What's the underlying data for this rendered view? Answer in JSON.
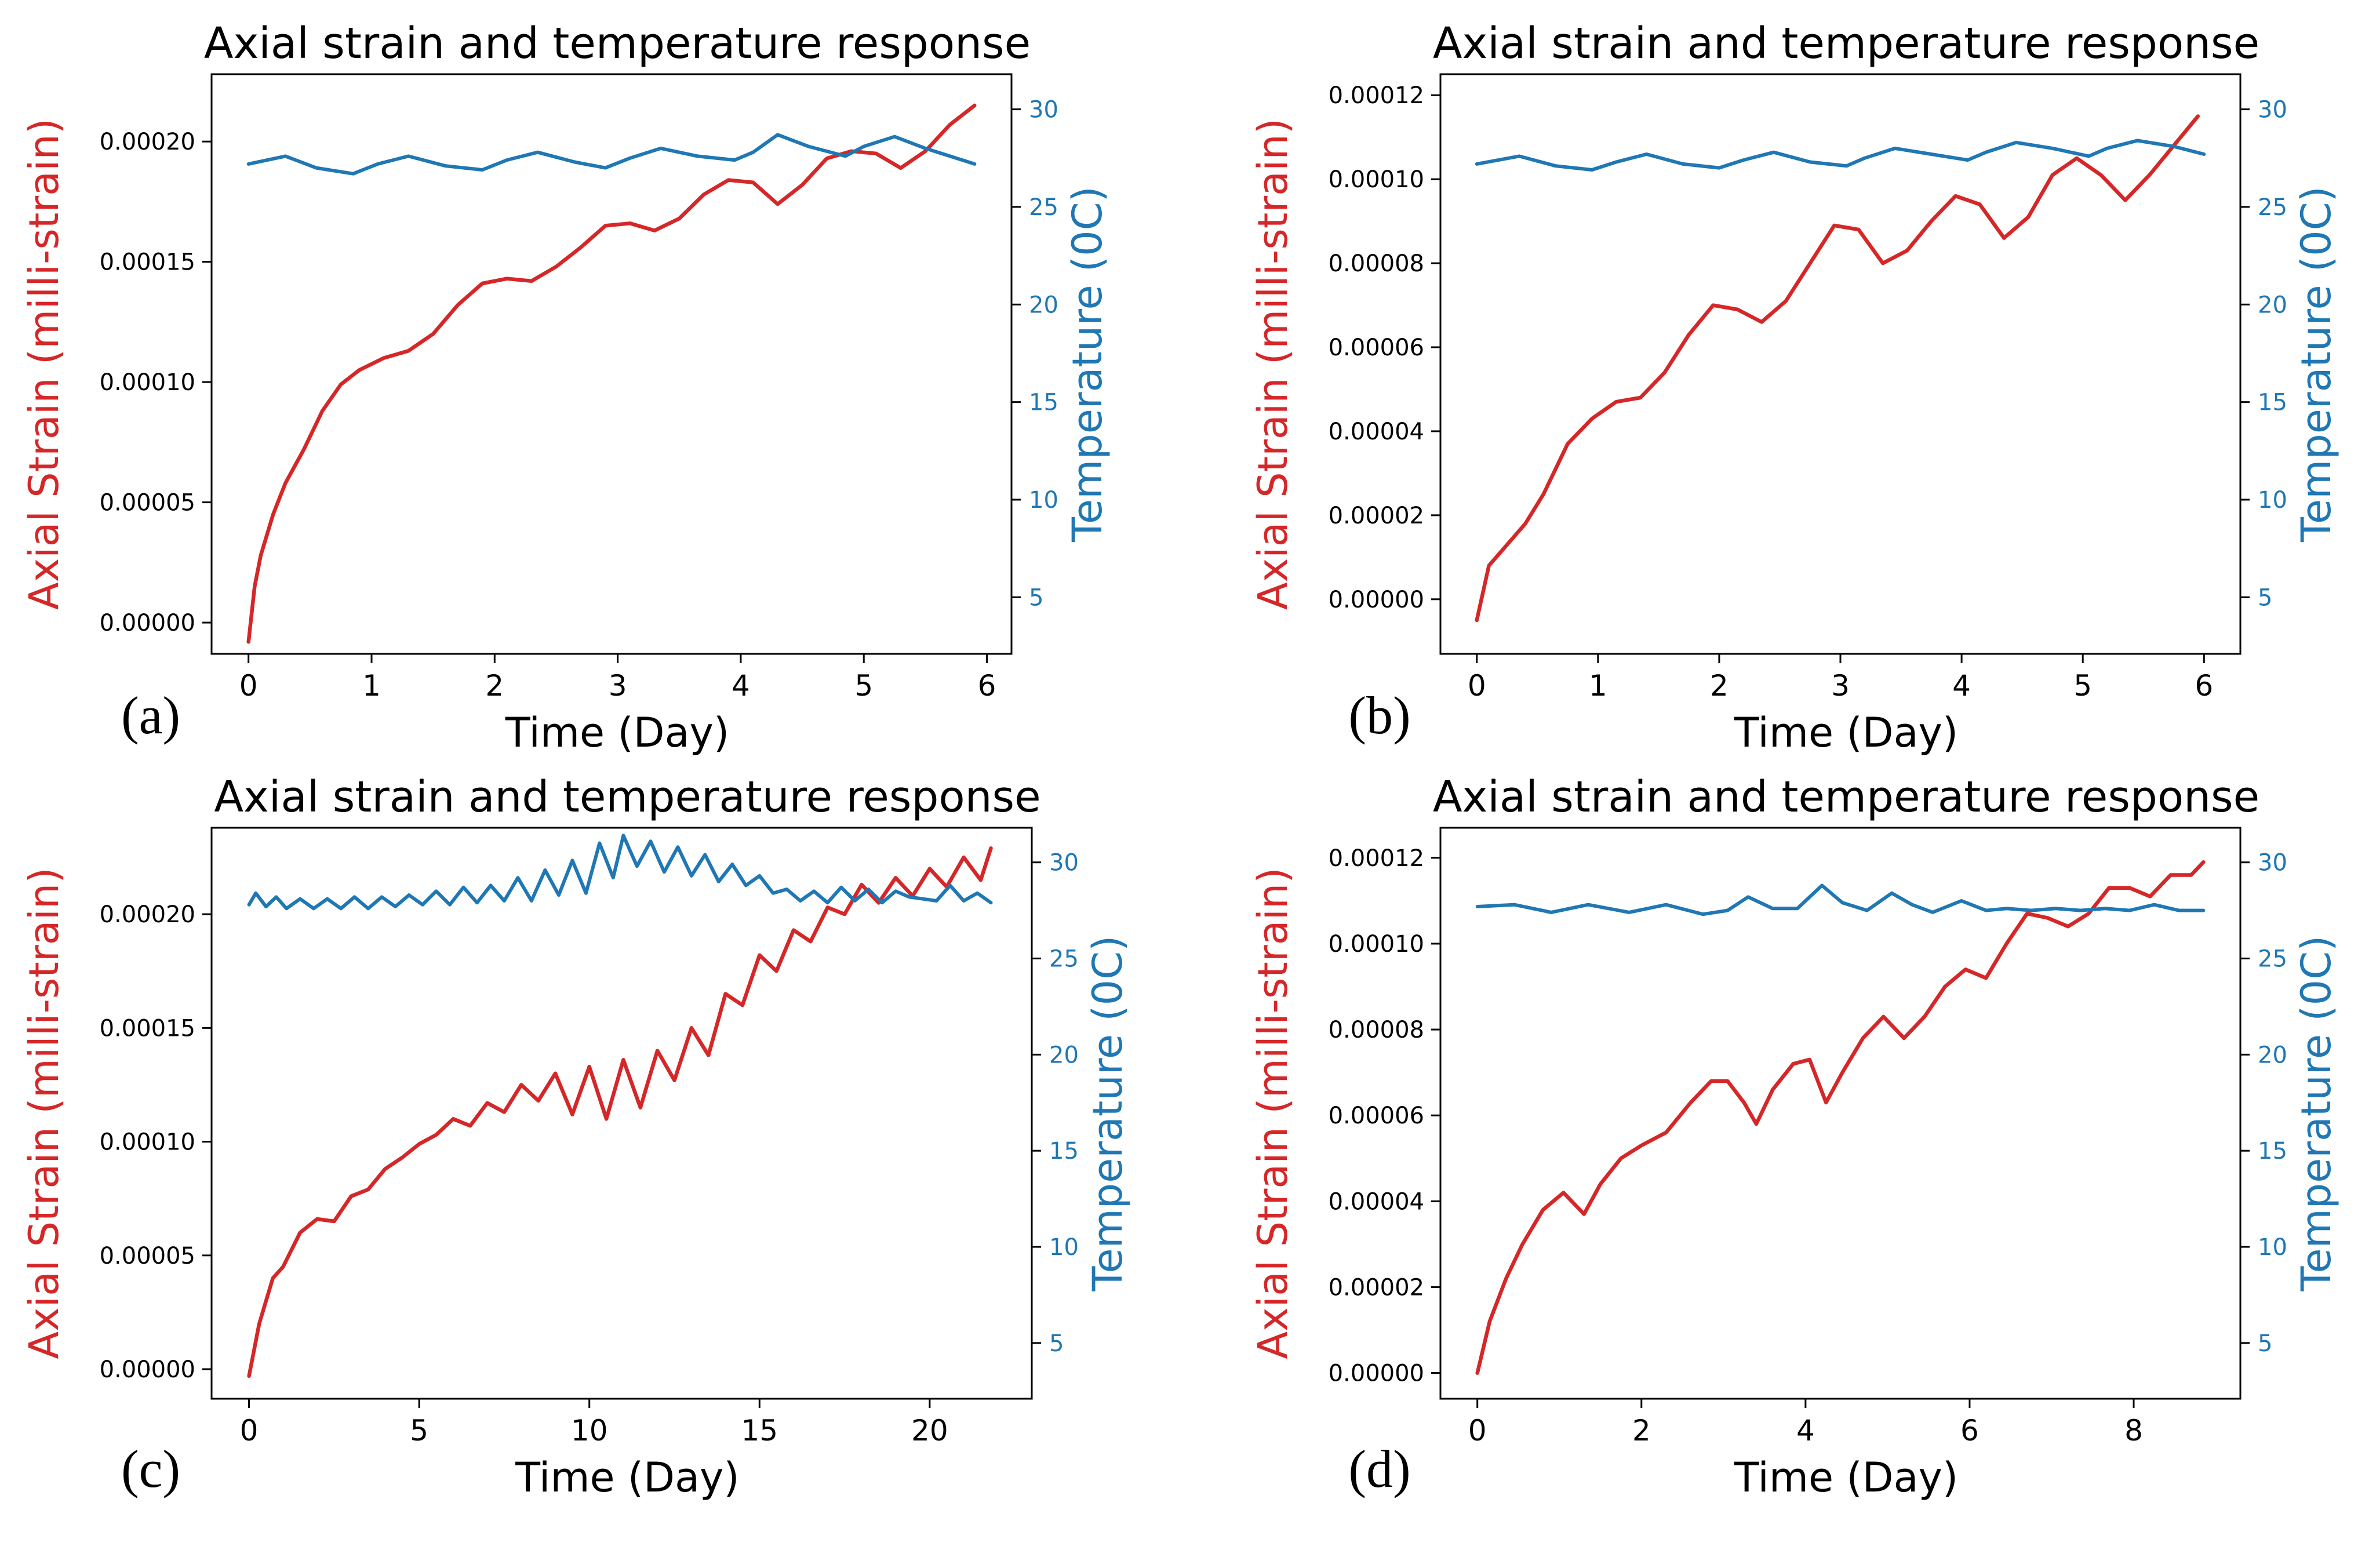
{
  "colors": {
    "strain": "#d62728",
    "temperature": "#1f77b4",
    "axis": "#000000"
  },
  "chart_data": [
    {
      "panel": "(a)",
      "type": "line",
      "title": "Axial strain and temperature response",
      "xlabel": "Time (Day)",
      "ylabel": "Axial Strain (milli-strain)",
      "y2label": "Temperature (0C)",
      "xlim": [
        -0.3,
        6.2
      ],
      "ylim": [
        -1.3e-05,
        0.000228
      ],
      "y2lim": [
        2.1,
        31.8
      ],
      "xticks": [
        0,
        1,
        2,
        3,
        4,
        5,
        6
      ],
      "xtick_labels": [
        "0",
        "1",
        "2",
        "3",
        "4",
        "5",
        "6"
      ],
      "yticks": [
        0,
        5e-05,
        0.0001,
        0.00015,
        0.0002
      ],
      "ytick_labels": [
        "0.00000",
        "0.00005",
        "0.00010",
        "0.00015",
        "0.00020"
      ],
      "y2ticks": [
        5,
        10,
        15,
        20,
        25,
        30
      ],
      "y2tick_labels": [
        "5",
        "10",
        "15",
        "20",
        "25",
        "30"
      ],
      "series": [
        {
          "name": "Axial Strain",
          "axis": "left",
          "x": [
            0,
            0.05,
            0.1,
            0.2,
            0.3,
            0.45,
            0.6,
            0.75,
            0.9,
            1.1,
            1.3,
            1.5,
            1.7,
            1.9,
            2.1,
            2.3,
            2.5,
            2.7,
            2.9,
            3.1,
            3.3,
            3.5,
            3.7,
            3.9,
            4.1,
            4.3,
            4.5,
            4.7,
            4.9,
            5.1,
            5.3,
            5.5,
            5.7,
            5.9
          ],
          "values": [
            -8e-06,
            1.5e-05,
            2.8e-05,
            4.5e-05,
            5.8e-05,
            7.2e-05,
            8.8e-05,
            9.9e-05,
            0.000105,
            0.00011,
            0.000113,
            0.00012,
            0.000132,
            0.000141,
            0.000143,
            0.000142,
            0.000148,
            0.000156,
            0.000165,
            0.000166,
            0.000163,
            0.000168,
            0.000178,
            0.000184,
            0.000183,
            0.000174,
            0.000182,
            0.000193,
            0.000196,
            0.000195,
            0.000189,
            0.000196,
            0.000207,
            0.000215
          ]
        },
        {
          "name": "Temperature",
          "axis": "right",
          "x": [
            0,
            0.3,
            0.55,
            0.85,
            1.05,
            1.3,
            1.6,
            1.9,
            2.1,
            2.35,
            2.65,
            2.9,
            3.1,
            3.35,
            3.65,
            3.95,
            4.1,
            4.3,
            4.55,
            4.85,
            5.0,
            5.25,
            5.5,
            5.9
          ],
          "values": [
            27.2,
            27.6,
            27.0,
            26.7,
            27.2,
            27.6,
            27.1,
            26.9,
            27.4,
            27.8,
            27.3,
            27.0,
            27.5,
            28.0,
            27.6,
            27.4,
            27.8,
            28.7,
            28.1,
            27.6,
            28.1,
            28.6,
            28.0,
            27.2
          ]
        }
      ]
    },
    {
      "panel": "(b)",
      "type": "line",
      "title": "Axial strain and temperature response",
      "xlabel": "Time (Day)",
      "ylabel": "Axial Strain (milli-strain)",
      "y2label": "Temperature (0C)",
      "xlim": [
        -0.3,
        6.3
      ],
      "ylim": [
        -1.3e-05,
        0.000125
      ],
      "y2lim": [
        2.1,
        31.8
      ],
      "xticks": [
        0,
        1,
        2,
        3,
        4,
        5,
        6
      ],
      "xtick_labels": [
        "0",
        "1",
        "2",
        "3",
        "4",
        "5",
        "6"
      ],
      "yticks": [
        0,
        2e-05,
        4e-05,
        6e-05,
        8e-05,
        0.0001,
        0.00012
      ],
      "ytick_labels": [
        "0.00000",
        "0.00002",
        "0.00004",
        "0.00006",
        "0.00008",
        "0.00010",
        "0.00012"
      ],
      "y2ticks": [
        5,
        10,
        15,
        20,
        25,
        30
      ],
      "y2tick_labels": [
        "5",
        "10",
        "15",
        "20",
        "25",
        "30"
      ],
      "series": [
        {
          "name": "Axial Strain",
          "axis": "left",
          "x": [
            0,
            0.1,
            0.25,
            0.4,
            0.55,
            0.75,
            0.95,
            1.15,
            1.35,
            1.55,
            1.75,
            1.95,
            2.15,
            2.35,
            2.55,
            2.75,
            2.95,
            3.15,
            3.35,
            3.55,
            3.75,
            3.95,
            4.15,
            4.35,
            4.55,
            4.75,
            4.95,
            5.15,
            5.35,
            5.55,
            5.75,
            5.95
          ],
          "values": [
            -5e-06,
            8e-06,
            1.3e-05,
            1.8e-05,
            2.5e-05,
            3.7e-05,
            4.3e-05,
            4.7e-05,
            4.8e-05,
            5.4e-05,
            6.3e-05,
            7e-05,
            6.9e-05,
            6.6e-05,
            7.1e-05,
            8e-05,
            8.9e-05,
            8.8e-05,
            8e-05,
            8.3e-05,
            9e-05,
            9.6e-05,
            9.4e-05,
            8.6e-05,
            9.1e-05,
            0.000101,
            0.000105,
            0.000101,
            9.5e-05,
            0.000101,
            0.000108,
            0.000115
          ]
        },
        {
          "name": "Temperature",
          "axis": "right",
          "x": [
            0,
            0.35,
            0.65,
            0.95,
            1.15,
            1.4,
            1.7,
            2.0,
            2.2,
            2.45,
            2.75,
            3.05,
            3.2,
            3.45,
            3.75,
            4.05,
            4.2,
            4.45,
            4.75,
            5.05,
            5.2,
            5.45,
            5.75,
            6.0
          ],
          "values": [
            27.2,
            27.6,
            27.1,
            26.9,
            27.3,
            27.7,
            27.2,
            27.0,
            27.4,
            27.8,
            27.3,
            27.1,
            27.5,
            28.0,
            27.7,
            27.4,
            27.8,
            28.3,
            28.0,
            27.6,
            28.0,
            28.4,
            28.1,
            27.7
          ]
        }
      ]
    },
    {
      "panel": "(c)",
      "type": "line",
      "title": "Axial strain and temperature response",
      "xlabel": "Time (Day)",
      "ylabel": "Axial Strain (milli-strain)",
      "y2label": "Temperature (0C)",
      "xlim": [
        -1.1,
        23.0
      ],
      "ylim": [
        -1.3e-05,
        0.000238
      ],
      "y2lim": [
        2.1,
        31.8
      ],
      "xticks": [
        0,
        5,
        10,
        15,
        20
      ],
      "xtick_labels": [
        "0",
        "5",
        "10",
        "15",
        "20"
      ],
      "yticks": [
        0,
        5e-05,
        0.0001,
        0.00015,
        0.0002
      ],
      "ytick_labels": [
        "0.00000",
        "0.00005",
        "0.00010",
        "0.00015",
        "0.00020"
      ],
      "y2ticks": [
        5,
        10,
        15,
        20,
        25,
        30
      ],
      "y2tick_labels": [
        "5",
        "10",
        "15",
        "20",
        "25",
        "30"
      ],
      "series": [
        {
          "name": "Axial Strain",
          "axis": "left",
          "x": [
            0,
            0.3,
            0.7,
            1.0,
            1.5,
            2.0,
            2.5,
            3.0,
            3.5,
            4.0,
            4.5,
            5.0,
            5.5,
            6.0,
            6.5,
            7.0,
            7.5,
            8.0,
            8.5,
            9.0,
            9.5,
            10.0,
            10.5,
            11.0,
            11.5,
            12.0,
            12.5,
            13.0,
            13.5,
            14.0,
            14.5,
            15.0,
            15.5,
            16.0,
            16.5,
            17.0,
            17.5,
            18.0,
            18.5,
            19.0,
            19.5,
            20.0,
            20.5,
            21.0,
            21.5,
            21.8
          ],
          "values": [
            -3e-06,
            2e-05,
            4e-05,
            4.5e-05,
            6e-05,
            6.6e-05,
            6.5e-05,
            7.6e-05,
            7.9e-05,
            8.8e-05,
            9.3e-05,
            9.9e-05,
            0.000103,
            0.00011,
            0.000107,
            0.000117,
            0.000113,
            0.000125,
            0.000118,
            0.00013,
            0.000112,
            0.000133,
            0.00011,
            0.000136,
            0.000115,
            0.00014,
            0.000127,
            0.00015,
            0.000138,
            0.000165,
            0.00016,
            0.000182,
            0.000175,
            0.000193,
            0.000188,
            0.000203,
            0.0002,
            0.000213,
            0.000205,
            0.000216,
            0.000208,
            0.00022,
            0.000212,
            0.000225,
            0.000215,
            0.000229
          ]
        },
        {
          "name": "Temperature",
          "axis": "right",
          "x": [
            0,
            0.2,
            0.5,
            0.8,
            1.1,
            1.5,
            1.9,
            2.3,
            2.7,
            3.1,
            3.5,
            3.9,
            4.3,
            4.7,
            5.1,
            5.5,
            5.9,
            6.3,
            6.7,
            7.1,
            7.5,
            7.9,
            8.3,
            8.7,
            9.1,
            9.5,
            9.9,
            10.3,
            10.7,
            11.0,
            11.4,
            11.8,
            12.2,
            12.6,
            13.0,
            13.4,
            13.8,
            14.2,
            14.6,
            15.0,
            15.4,
            15.8,
            16.2,
            16.6,
            17.0,
            17.4,
            17.8,
            18.2,
            18.6,
            19.0,
            19.4,
            19.8,
            20.2,
            20.6,
            21.0,
            21.4,
            21.8
          ],
          "values": [
            27.8,
            28.4,
            27.7,
            28.2,
            27.6,
            28.1,
            27.6,
            28.1,
            27.6,
            28.2,
            27.6,
            28.2,
            27.7,
            28.3,
            27.8,
            28.5,
            27.8,
            28.7,
            27.9,
            28.8,
            28.0,
            29.2,
            28.0,
            29.6,
            28.3,
            30.1,
            28.4,
            31.0,
            29.2,
            31.4,
            29.8,
            31.1,
            29.5,
            30.8,
            29.3,
            30.4,
            29.0,
            29.9,
            28.8,
            29.3,
            28.4,
            28.6,
            28.0,
            28.5,
            27.9,
            28.7,
            28.0,
            28.6,
            27.9,
            28.5,
            28.2,
            28.1,
            28.0,
            28.8,
            28.0,
            28.4,
            27.9
          ]
        }
      ]
    },
    {
      "panel": "(d)",
      "type": "line",
      "title": "Axial strain and temperature response",
      "xlabel": "Time (Day)",
      "ylabel": "Axial Strain (milli-strain)",
      "y2label": "Temperature (0C)",
      "xlim": [
        -0.45,
        9.3
      ],
      "ylim": [
        -6e-06,
        0.000127
      ],
      "y2lim": [
        2.1,
        31.8
      ],
      "xticks": [
        0,
        2,
        4,
        6,
        8
      ],
      "xtick_labels": [
        "0",
        "2",
        "4",
        "6",
        "8"
      ],
      "yticks": [
        0,
        2e-05,
        4e-05,
        6e-05,
        8e-05,
        0.0001,
        0.00012
      ],
      "ytick_labels": [
        "0.00000",
        "0.00002",
        "0.00004",
        "0.00006",
        "0.00008",
        "0.00010",
        "0.00012"
      ],
      "y2ticks": [
        5,
        10,
        15,
        20,
        25,
        30
      ],
      "y2tick_labels": [
        "5",
        "10",
        "15",
        "20",
        "25",
        "30"
      ],
      "series": [
        {
          "name": "Axial Strain",
          "axis": "left",
          "x": [
            0,
            0.15,
            0.35,
            0.55,
            0.8,
            1.05,
            1.3,
            1.5,
            1.75,
            2.0,
            2.3,
            2.6,
            2.85,
            3.05,
            3.25,
            3.4,
            3.6,
            3.85,
            4.05,
            4.25,
            4.45,
            4.7,
            4.95,
            5.2,
            5.45,
            5.7,
            5.95,
            6.2,
            6.45,
            6.7,
            6.95,
            7.2,
            7.45,
            7.7,
            7.95,
            8.2,
            8.45,
            8.7,
            8.85
          ],
          "values": [
            0,
            1.2e-05,
            2.2e-05,
            3e-05,
            3.8e-05,
            4.2e-05,
            3.7e-05,
            4.4e-05,
            5e-05,
            5.3e-05,
            5.6e-05,
            6.3e-05,
            6.8e-05,
            6.8e-05,
            6.3e-05,
            5.8e-05,
            6.6e-05,
            7.2e-05,
            7.3e-05,
            6.3e-05,
            7e-05,
            7.8e-05,
            8.3e-05,
            7.8e-05,
            8.3e-05,
            9e-05,
            9.4e-05,
            9.2e-05,
            0.0001,
            0.000107,
            0.000106,
            0.000104,
            0.000107,
            0.000113,
            0.000113,
            0.000111,
            0.000116,
            0.000116,
            0.000119
          ]
        },
        {
          "name": "Temperature",
          "axis": "right",
          "x": [
            0,
            0.45,
            0.9,
            1.35,
            1.85,
            2.3,
            2.75,
            3.05,
            3.3,
            3.6,
            3.9,
            4.2,
            4.45,
            4.75,
            5.05,
            5.3,
            5.55,
            5.9,
            6.2,
            6.45,
            6.75,
            7.05,
            7.35,
            7.65,
            7.95,
            8.25,
            8.55,
            8.85
          ],
          "values": [
            27.7,
            27.8,
            27.4,
            27.8,
            27.4,
            27.8,
            27.3,
            27.5,
            28.2,
            27.6,
            27.6,
            28.8,
            27.9,
            27.5,
            28.4,
            27.8,
            27.4,
            28.0,
            27.5,
            27.6,
            27.5,
            27.6,
            27.5,
            27.6,
            27.5,
            27.8,
            27.5,
            27.5
          ]
        }
      ]
    }
  ]
}
